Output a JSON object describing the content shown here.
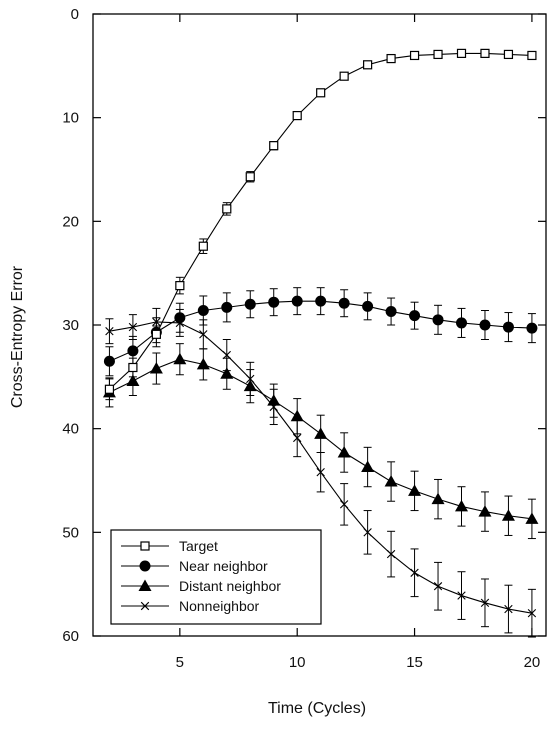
{
  "chart_data": {
    "type": "line",
    "title": "",
    "xlabel": "Time (Cycles)",
    "ylabel": "Cross-Entropy Error",
    "xlim": [
      1.3,
      20.6
    ],
    "ylim": [
      0,
      60
    ],
    "y_inverted": true,
    "xticks": [
      5,
      10,
      15,
      20
    ],
    "yticks": [
      0,
      10,
      20,
      30,
      40,
      50,
      60
    ],
    "grid": false,
    "legend_position": "bottom-left",
    "x": [
      2,
      3,
      4,
      5,
      6,
      7,
      8,
      9,
      10,
      11,
      12,
      13,
      14,
      15,
      16,
      17,
      18,
      19,
      20
    ],
    "series": [
      {
        "name": "Target",
        "marker": "open-square",
        "values": [
          36.2,
          34.1,
          30.9,
          26.2,
          22.4,
          18.8,
          15.7,
          12.7,
          9.8,
          7.6,
          6.0,
          4.9,
          4.3,
          4.0,
          3.9,
          3.8,
          3.8,
          3.9,
          4.0
        ],
        "errors": [
          1.0,
          0.9,
          0.8,
          0.8,
          0.7,
          0.6,
          0.5,
          0.4,
          0.3,
          0.3,
          0.3,
          0.2,
          0.2,
          0.2,
          0.2,
          0.2,
          0.2,
          0.2,
          0.2
        ]
      },
      {
        "name": "Near neighbor",
        "marker": "filled-circle",
        "values": [
          33.5,
          32.5,
          30.7,
          29.3,
          28.6,
          28.3,
          28.0,
          27.8,
          27.7,
          27.7,
          27.9,
          28.2,
          28.7,
          29.1,
          29.5,
          29.8,
          30.0,
          30.2,
          30.3
        ],
        "errors": [
          1.4,
          1.4,
          1.4,
          1.4,
          1.4,
          1.4,
          1.3,
          1.3,
          1.3,
          1.3,
          1.3,
          1.3,
          1.3,
          1.3,
          1.4,
          1.4,
          1.4,
          1.4,
          1.4
        ]
      },
      {
        "name": "Distant neighbor",
        "marker": "filled-triangle",
        "values": [
          36.5,
          35.4,
          34.2,
          33.3,
          33.8,
          34.7,
          35.9,
          37.3,
          38.8,
          40.5,
          42.3,
          43.7,
          45.1,
          46.0,
          46.8,
          47.5,
          48.0,
          48.4,
          48.7
        ],
        "errors": [
          1.4,
          1.4,
          1.5,
          1.5,
          1.5,
          1.5,
          1.6,
          1.6,
          1.7,
          1.8,
          1.9,
          1.9,
          1.9,
          1.9,
          1.9,
          1.9,
          1.9,
          1.9,
          1.9
        ]
      },
      {
        "name": "Nonneighbor",
        "marker": "x",
        "values": [
          30.6,
          30.2,
          29.7,
          29.8,
          30.9,
          32.9,
          35.2,
          37.9,
          40.9,
          44.2,
          47.3,
          50.0,
          52.1,
          53.9,
          55.2,
          56.1,
          56.8,
          57.4,
          57.8
        ],
        "errors": [
          1.2,
          1.2,
          1.3,
          1.3,
          1.4,
          1.5,
          1.6,
          1.7,
          1.8,
          1.9,
          2.0,
          2.1,
          2.2,
          2.3,
          2.3,
          2.3,
          2.3,
          2.3,
          2.3
        ]
      }
    ]
  }
}
